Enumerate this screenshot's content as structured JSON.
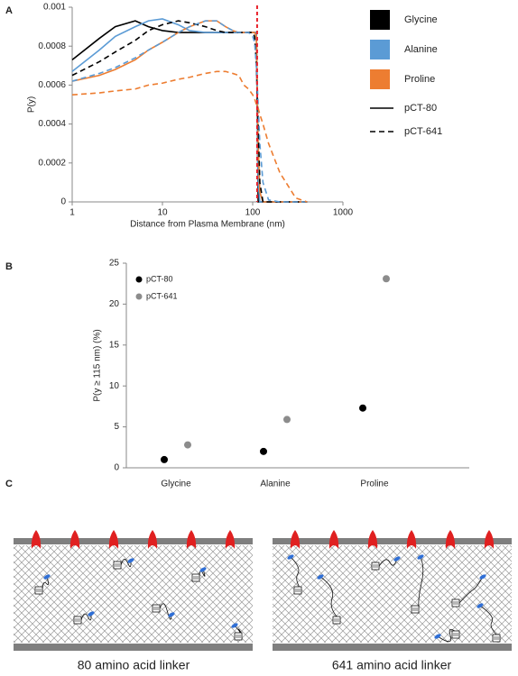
{
  "panel_labels": [
    "A",
    "B",
    "C"
  ],
  "chart_data": [
    {
      "type": "line",
      "xlabel": "Distance from Plasma Membrane (nm)",
      "ylabel": "P(y)",
      "xscale": "log",
      "xlim": [
        1,
        1000
      ],
      "xticks": [
        1,
        10,
        100,
        1000
      ],
      "ylim": [
        0,
        0.001
      ],
      "yticks": [
        0,
        0.0002,
        0.0004,
        0.0006,
        0.0008,
        0.001
      ],
      "x": [
        1,
        2,
        3,
        5,
        7,
        10,
        15,
        20,
        30,
        40,
        50,
        60,
        70,
        80,
        90,
        100,
        105,
        110,
        115,
        120,
        130,
        150,
        200,
        300,
        400
      ],
      "vline": {
        "x": 112,
        "color": "#e8202a"
      },
      "series": [
        {
          "color": "#000000",
          "style": "solid",
          "values": [
            0.00073,
            0.00084,
            0.0009,
            0.00093,
            0.0009,
            0.00088,
            0.00087,
            0.00087,
            0.00087,
            0.00087,
            0.00087,
            0.00087,
            0.00087,
            0.00087,
            0.00087,
            0.00087,
            0.00087,
            0.00087,
            0,
            0,
            0,
            0,
            0,
            0,
            0
          ]
        },
        {
          "color": "#5b9bd5",
          "style": "solid",
          "values": [
            0.00067,
            0.00078,
            0.00085,
            0.0009,
            0.00093,
            0.00094,
            0.00091,
            0.00088,
            0.00087,
            0.00087,
            0.00087,
            0.00087,
            0.00087,
            0.00087,
            0.00087,
            0.00087,
            0.00087,
            0.00087,
            0.0001,
            0,
            0,
            0,
            0,
            0,
            0
          ]
        },
        {
          "color": "#ed7d31",
          "style": "solid",
          "values": [
            0.00062,
            0.00065,
            0.00068,
            0.00073,
            0.00078,
            0.00082,
            0.00087,
            0.0009,
            0.00093,
            0.00093,
            0.0009,
            0.00088,
            0.00087,
            0.00087,
            0.00087,
            0.00087,
            0.00087,
            0.00085,
            0.0003,
            5e-05,
            0,
            0,
            0,
            0,
            0
          ]
        },
        {
          "color": "#000000",
          "style": "dashed",
          "values": [
            0.00065,
            0.00072,
            0.00077,
            0.00083,
            0.00088,
            0.00091,
            0.00093,
            0.00092,
            0.0009,
            0.00088,
            0.00087,
            0.00087,
            0.00087,
            0.00087,
            0.00087,
            0.00087,
            0.00085,
            0.0007,
            0.0004,
            0.0001,
            0,
            0,
            0,
            0,
            0
          ]
        },
        {
          "color": "#5b9bd5",
          "style": "dashed",
          "values": [
            0.00062,
            0.00066,
            0.00069,
            0.00074,
            0.00078,
            0.00082,
            0.00087,
            0.0009,
            0.00093,
            0.00093,
            0.0009,
            0.00088,
            0.00087,
            0.00087,
            0.00087,
            0.00085,
            0.00082,
            0.0007,
            0.0005,
            0.0003,
            0.0001,
            1e-05,
            0,
            0,
            0
          ]
        },
        {
          "color": "#ed7d31",
          "style": "dashed",
          "values": [
            0.00055,
            0.00056,
            0.00057,
            0.00058,
            0.0006,
            0.00061,
            0.00063,
            0.00064,
            0.00066,
            0.00067,
            0.00067,
            0.00066,
            0.00065,
            0.0006,
            0.00058,
            0.00055,
            0.00053,
            0.0005,
            0.00048,
            0.00045,
            0.0004,
            0.0003,
            0.00015,
            2e-05,
            0
          ]
        }
      ],
      "legend_colors": [
        {
          "name": "Glycine",
          "color": "#000000"
        },
        {
          "name": "Alanine",
          "color": "#5b9bd5"
        },
        {
          "name": "Proline",
          "color": "#ed7d31"
        }
      ],
      "legend_styles": [
        {
          "name": "pCT-80",
          "style": "solid"
        },
        {
          "name": "pCT-641",
          "style": "dashed"
        }
      ]
    },
    {
      "type": "scatter",
      "ylabel": "P(y ≥ 115 nm) (%)",
      "categories": [
        "Glycine",
        "Alanine",
        "Proline"
      ],
      "ylim": [
        0,
        25
      ],
      "yticks": [
        0,
        5,
        10,
        15,
        20,
        25
      ],
      "legend": "upper left",
      "series": [
        {
          "name": "pCT-80",
          "color": "#000000",
          "values": [
            1,
            2,
            7.3
          ]
        },
        {
          "name": "pCT-641",
          "color": "#8c8c8c",
          "values": [
            2.8,
            5.9,
            23.1
          ]
        }
      ]
    }
  ],
  "diagram": {
    "captions": [
      "80 amino acid linker",
      "641 amino acid linker"
    ]
  }
}
